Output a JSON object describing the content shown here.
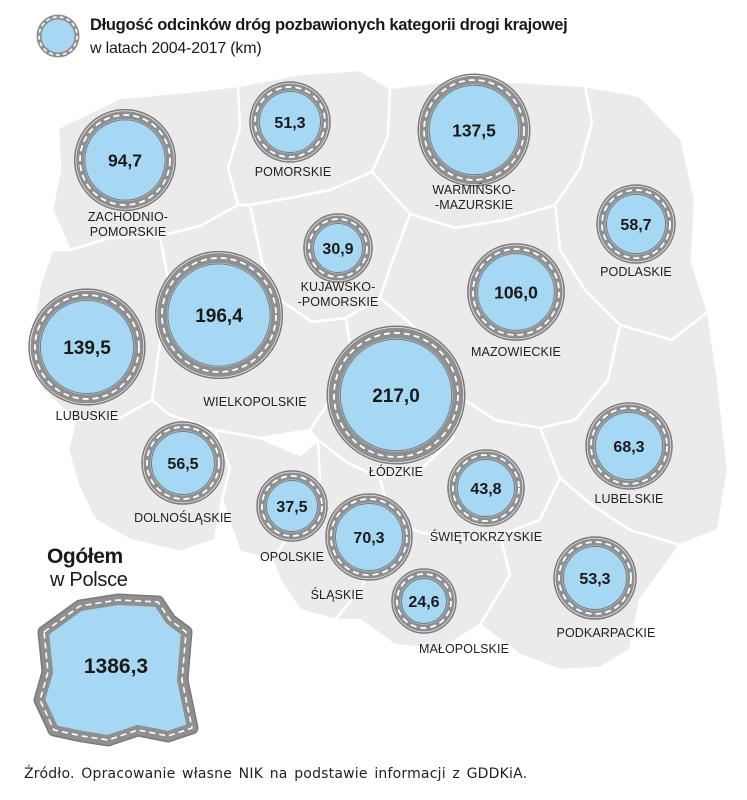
{
  "legend": {
    "title": "Długość odcinków dróg pozbawionych kategorii drogi krajowej",
    "subtitle": "w latach 2004-2017 (km)"
  },
  "total": {
    "title": "Ogółem",
    "subtitle": "w Polsce",
    "value": "1386,3"
  },
  "source": "Źródło. Opracowanie własne NIK na podstawie informacji z GDDKiA.",
  "colors": {
    "map_fill": "#ebebeb",
    "border": "#ffffff",
    "circle_fill": "#a7d8f3",
    "ring": "#8f8f8f",
    "dash": "#ffffff"
  },
  "voivodeships": [
    {
      "id": "zachodniopomorskie",
      "value": "94,7",
      "label_lines": [
        "ZACHODNIO-",
        "POMORSKIE"
      ]
    },
    {
      "id": "pomorskie",
      "value": "51,3",
      "label_lines": [
        "POMORSKIE"
      ]
    },
    {
      "id": "warminsko-mazurskie",
      "value": "137,5",
      "label_lines": [
        "WARMIŃSKO-",
        "-MAZURSKIE"
      ]
    },
    {
      "id": "podlaskie",
      "value": "58,7",
      "label_lines": [
        "PODLASKIE"
      ]
    },
    {
      "id": "kujawsko-pomorskie",
      "value": "30,9",
      "label_lines": [
        "KUJAWSKO-",
        "-POMORSKIE"
      ]
    },
    {
      "id": "lubuskie",
      "value": "139,5",
      "label_lines": [
        "LUBUSKIE"
      ]
    },
    {
      "id": "wielkopolskie",
      "value": "196,4",
      "label_lines": [
        "WIELKOPOLSKIE"
      ]
    },
    {
      "id": "mazowieckie",
      "value": "106,0",
      "label_lines": [
        "MAZOWIECKIE"
      ]
    },
    {
      "id": "lodzkie",
      "value": "217,0",
      "label_lines": [
        "ŁÓDZKIE"
      ]
    },
    {
      "id": "lubelskie",
      "value": "68,3",
      "label_lines": [
        "LUBELSKIE"
      ]
    },
    {
      "id": "dolnoslaskie",
      "value": "56,5",
      "label_lines": [
        "DOLNOŚLĄSKIE"
      ]
    },
    {
      "id": "opolskie",
      "value": "37,5",
      "label_lines": [
        "OPOLSKIE"
      ]
    },
    {
      "id": "slaskie",
      "value": "70,3",
      "label_lines": [
        "ŚLĄSKIE"
      ]
    },
    {
      "id": "swietokrzyskie",
      "value": "43,8",
      "label_lines": [
        "ŚWIĘTOKRZYSKIE"
      ]
    },
    {
      "id": "malopolskie",
      "value": "24,6",
      "label_lines": [
        "MAŁOPOLSKIE"
      ]
    },
    {
      "id": "podkarpackie",
      "value": "53,3",
      "label_lines": [
        "PODKARPACKIE"
      ]
    }
  ]
}
